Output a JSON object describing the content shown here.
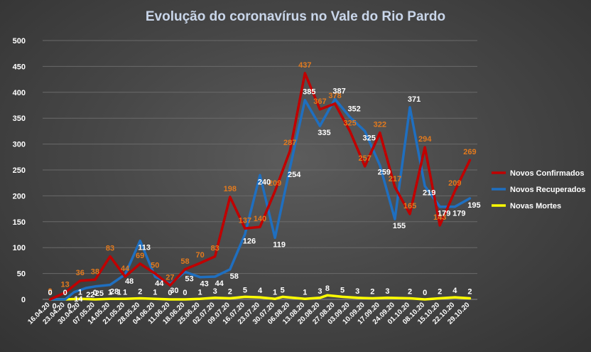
{
  "chart_data": {
    "type": "line",
    "title": "Evolução  do coronavírus  no Vale do Rio Pardo",
    "ylim": [
      0,
      500
    ],
    "yticks": [
      0,
      50,
      100,
      150,
      200,
      250,
      300,
      350,
      400,
      450,
      500
    ],
    "grid": true,
    "legend_position": "right",
    "categories": [
      "16.04.20",
      "23.04.20",
      "30.04.20",
      "07.05.20",
      "14.05.20",
      "21.05.20",
      "28.05.20",
      "04.06.20",
      "11.06.20",
      "18.06.20",
      "25.06.20",
      "02.07.20",
      "09.07.20",
      "16.07.20",
      "23.07.20",
      "30.07.20",
      "06.08.20",
      "13.08.20",
      "20.08.20",
      "27.08.20",
      "03.09.20",
      "10.09.20",
      "17.09.20",
      "24.09.20",
      "01.10.20",
      "08.10.20",
      "15.10.20",
      "22.10.20",
      "29.10.20"
    ],
    "x": [
      0,
      1,
      2,
      3,
      3.7,
      4.5,
      5.5,
      6.5,
      7.5,
      8.5,
      9.5,
      10.5,
      11.5,
      12.5,
      13.5,
      14.5,
      15.5,
      16.5,
      17.5,
      18.5,
      19.5,
      20.5,
      21.5,
      22.5,
      23.5,
      24.5,
      25.5,
      26.5,
      27.5,
      28.2,
      29
    ],
    "series": [
      {
        "name": "Novos Confirmados",
        "color": "#c00000",
        "values": [
          0,
          13,
          36,
          38,
          83,
          44,
          69,
          50,
          27,
          58,
          70,
          83,
          198,
          137,
          140,
          209,
          287,
          437,
          367,
          378,
          325,
          257,
          322,
          217,
          165,
          294,
          143,
          209,
          269
        ],
        "x": [
          0,
          1,
          2,
          3,
          4,
          5,
          6,
          7,
          8,
          9,
          10,
          11,
          12,
          13,
          14,
          15,
          16,
          17,
          18,
          19,
          20,
          21,
          22,
          23,
          24,
          25,
          26,
          27,
          28
        ]
      },
      {
        "name": "Novos Recuperados",
        "color": "#1f6fc0",
        "values": [
          0,
          0,
          14,
          22,
          25,
          28,
          48,
          113,
          44,
          30,
          53,
          43,
          44,
          58,
          126,
          240,
          119,
          254,
          385,
          335,
          387,
          352,
          325,
          259,
          155,
          371,
          219,
          179,
          179,
          195
        ],
        "x": [
          0,
          1,
          1.6,
          2.4,
          3,
          4,
          5,
          6,
          7,
          8,
          9,
          10,
          11,
          12,
          13,
          14,
          15,
          16,
          17,
          18,
          19,
          20,
          21,
          22,
          23,
          24,
          25,
          26,
          27,
          28
        ]
      },
      {
        "name": "Novas Mortes",
        "color": "#ffff00",
        "values": [
          0,
          0,
          1,
          0,
          1,
          1,
          1,
          2,
          1,
          0,
          0,
          1,
          3,
          2,
          5,
          4,
          1,
          5,
          1,
          3,
          8,
          5,
          3,
          2,
          3,
          2,
          0,
          2,
          4,
          2
        ],
        "x": [
          0,
          1,
          2,
          3,
          4,
          4.6,
          5,
          6,
          7,
          8,
          9,
          10,
          11,
          12,
          13,
          14,
          15,
          15.5,
          17,
          18,
          18.5,
          19.5,
          20.5,
          21.5,
          22.5,
          24,
          25,
          26,
          27,
          28
        ]
      }
    ]
  }
}
